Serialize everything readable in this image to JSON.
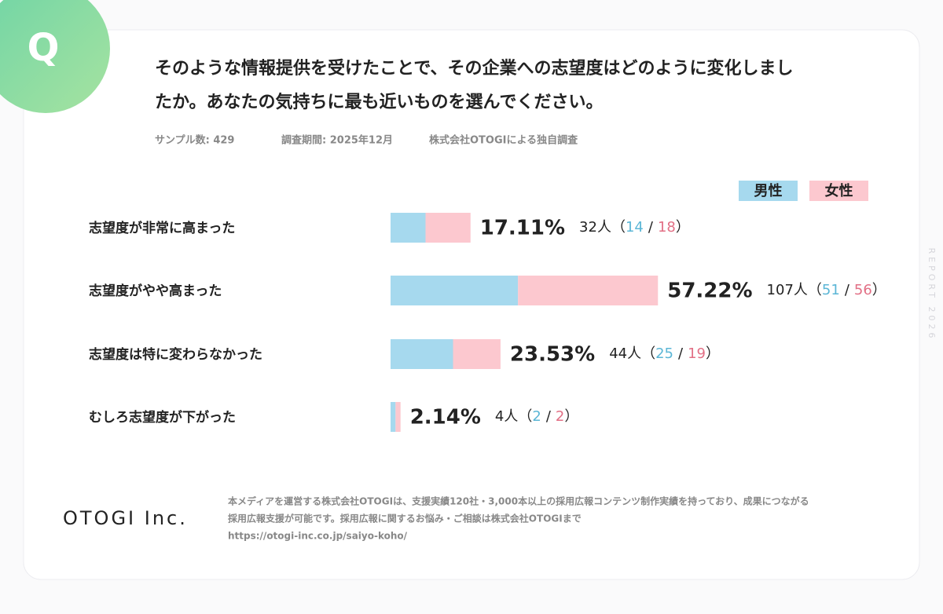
{
  "chart_data": {
    "type": "bar",
    "badge": "Q",
    "title_lines": [
      "そのような情報提供を受けたことで、その企業への志望度はどのように変化しまし",
      "たか。あなたの気持ちに最も近いものを選んでください。"
    ],
    "meta": [
      "サンプル数:  429",
      "調査期間: 2025年12月",
      "株式会社OTOGIによる独自調査"
    ],
    "categories": [
      "志望度が非常に高まった",
      "志望度がやや高まった",
      "志望度は特に変わらなかった",
      "むしろ志望度が下がった"
    ],
    "percent_labels": [
      "17.11%",
      "57.22%",
      "23.53%",
      "2.14%"
    ],
    "values": [
      32,
      107,
      44,
      4
    ],
    "value_labels": [
      "32人",
      "107人",
      "44人",
      "4人"
    ],
    "brackets": [
      "（",
      "/",
      "）"
    ],
    "series": [
      {
        "name": "男性",
        "color": "#a6d9ee",
        "text_color": "#5bb6d6",
        "values": [
          14,
          51,
          25,
          2
        ]
      },
      {
        "name": "女性",
        "color": "#fcc8cf",
        "text_color": "#e26f85",
        "values": [
          18,
          56,
          19,
          2
        ]
      }
    ],
    "side_text": "REPORT 2026",
    "logo": "OTOGI Inc.",
    "footer_lines": [
      "本メディアを運営する株式会社OTOGIは、支援実績120社・3,000本以上の採用広報コンテンツ制作実績を持っており、成果につながる",
      "採用広報支援が可能です。採用広報に関するお悩み・ご相談は株式会社OTOGIまで",
      "https://otogi-inc.co.jp/saiyo-koho/"
    ]
  }
}
